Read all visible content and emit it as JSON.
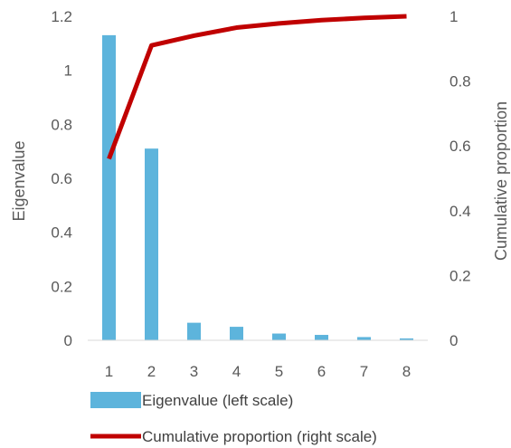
{
  "chart_data": {
    "type": "bar",
    "title": "",
    "xlabel": "",
    "categories": [
      "1",
      "2",
      "3",
      "4",
      "5",
      "6",
      "7",
      "8"
    ],
    "series": [
      {
        "name": "Eigenvalue (left scale)",
        "type": "bar",
        "axis": "left",
        "color": "#5DB4DC",
        "values": [
          1.13,
          0.71,
          0.065,
          0.05,
          0.025,
          0.02,
          0.012,
          0.007
        ]
      },
      {
        "name": "Cumulative proportion (right scale)",
        "type": "line",
        "axis": "right",
        "color": "#C00000",
        "values": [
          0.56,
          0.91,
          0.94,
          0.965,
          0.978,
          0.988,
          0.995,
          1.0
        ]
      }
    ],
    "y_left": {
      "label": "Eigenvalue",
      "range": [
        0,
        1.2
      ],
      "ticks": [
        "0",
        "0.2",
        "0.4",
        "0.6",
        "0.8",
        "1",
        "1.2"
      ]
    },
    "y_right": {
      "label": "Cumulative proportion",
      "range": [
        0,
        1
      ],
      "ticks": [
        "0",
        "0.2",
        "0.4",
        "0.6",
        "0.8",
        "1"
      ]
    },
    "grid": false,
    "legend_position": "bottom-left"
  }
}
